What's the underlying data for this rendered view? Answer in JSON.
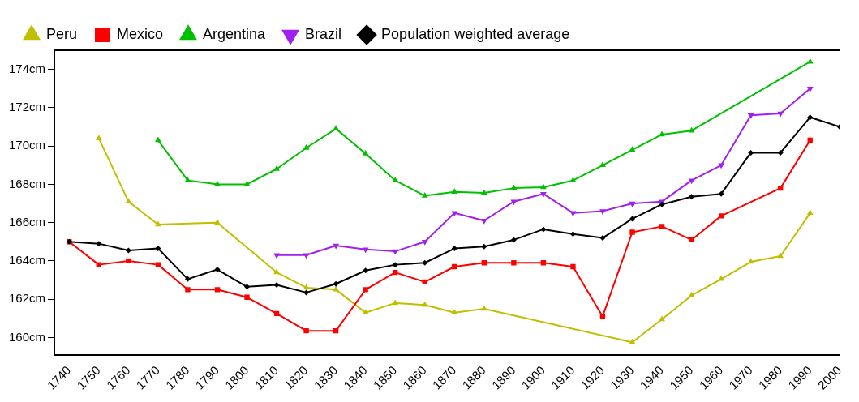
{
  "chart_data": {
    "type": "line",
    "xlim": [
      1735,
      2000
    ],
    "xticks": [
      1740,
      1750,
      1760,
      1770,
      1780,
      1790,
      1800,
      1810,
      1820,
      1830,
      1840,
      1850,
      1860,
      1870,
      1880,
      1890,
      1900,
      1910,
      1920,
      1930,
      1940,
      1950,
      1960,
      1970,
      1980,
      1990,
      2000
    ],
    "ylim": [
      159.1,
      175
    ],
    "yticks": [
      {
        "value": 160,
        "label": "160cm"
      },
      {
        "value": 162,
        "label": "162cm"
      },
      {
        "value": 164,
        "label": "164cm"
      },
      {
        "value": 166,
        "label": "166cm"
      },
      {
        "value": 168,
        "label": "168cm"
      },
      {
        "value": 170,
        "label": "170cm"
      },
      {
        "value": 172,
        "label": "172cm"
      },
      {
        "value": 174,
        "label": "174cm"
      }
    ],
    "grid": false,
    "legend": "top left",
    "line_style": "solid",
    "series": [
      {
        "name": "Peru",
        "color": "#bfbf00",
        "marker": "triangle",
        "x": [
          1750,
          1760,
          1770,
          1790,
          1810,
          1820,
          1830,
          1840,
          1850,
          1860,
          1870,
          1880,
          1930,
          1940,
          1950,
          1960,
          1970,
          1980,
          1990
        ],
        "values": [
          170.4,
          167.1,
          165.9,
          166.0,
          163.4,
          162.6,
          162.5,
          161.3,
          161.8,
          161.7,
          161.3,
          161.5,
          159.75,
          160.95,
          162.2,
          163.05,
          163.95,
          164.25,
          166.5
        ]
      },
      {
        "name": "Mexico",
        "color": "#ff0000",
        "marker": "square",
        "x": [
          1740,
          1750,
          1760,
          1770,
          1780,
          1790,
          1800,
          1810,
          1820,
          1830,
          1840,
          1850,
          1860,
          1870,
          1880,
          1890,
          1900,
          1910,
          1920,
          1930,
          1940,
          1950,
          1960,
          1980,
          1990
        ],
        "values": [
          165.0,
          163.8,
          164.0,
          163.8,
          162.5,
          162.5,
          162.1,
          161.25,
          160.35,
          160.35,
          162.5,
          163.4,
          162.9,
          163.7,
          163.9,
          163.9,
          163.9,
          163.7,
          161.1,
          165.5,
          165.8,
          165.1,
          166.35,
          167.8,
          170.3
        ]
      },
      {
        "name": "Argentina",
        "color": "#00c000",
        "marker": "triangle",
        "x": [
          1770,
          1780,
          1790,
          1800,
          1810,
          1820,
          1830,
          1840,
          1850,
          1860,
          1870,
          1880,
          1890,
          1900,
          1910,
          1920,
          1930,
          1940,
          1950,
          1990
        ],
        "values": [
          170.3,
          168.2,
          168.0,
          168.0,
          168.8,
          169.9,
          170.9,
          169.6,
          168.2,
          167.4,
          167.6,
          167.55,
          167.8,
          167.85,
          168.2,
          169.0,
          169.8,
          170.6,
          170.8,
          174.4
        ]
      },
      {
        "name": "Brazil",
        "color": "#a020f0",
        "marker": "triangle-down",
        "x": [
          1810,
          1820,
          1830,
          1840,
          1850,
          1860,
          1870,
          1880,
          1890,
          1900,
          1910,
          1920,
          1930,
          1940,
          1950,
          1960,
          1970,
          1980,
          1990
        ],
        "values": [
          164.3,
          164.3,
          164.8,
          164.6,
          164.5,
          165.0,
          166.5,
          166.1,
          167.1,
          167.5,
          166.5,
          166.6,
          167.0,
          167.1,
          168.2,
          169.0,
          171.6,
          171.7,
          173.0
        ]
      },
      {
        "name": "Population weighted average",
        "color": "#000000",
        "marker": "diamond",
        "x": [
          1740,
          1750,
          1760,
          1770,
          1780,
          1790,
          1800,
          1810,
          1820,
          1830,
          1840,
          1850,
          1860,
          1870,
          1880,
          1890,
          1900,
          1910,
          1920,
          1930,
          1940,
          1950,
          1960,
          1970,
          1980,
          1990,
          2000
        ],
        "values": [
          165.0,
          164.9,
          164.55,
          164.65,
          163.05,
          163.55,
          162.65,
          162.75,
          162.35,
          162.8,
          163.5,
          163.8,
          163.9,
          164.65,
          164.75,
          165.1,
          165.65,
          165.4,
          165.2,
          166.2,
          166.95,
          167.35,
          167.5,
          169.65,
          169.65,
          171.5,
          171.0
        ]
      }
    ]
  }
}
